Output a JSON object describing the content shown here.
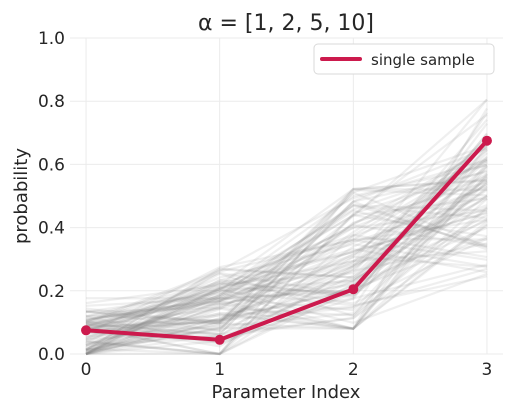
{
  "chart_data": {
    "type": "line",
    "title": "α = [1, 2, 5, 10]",
    "xlabel": "Parameter Index",
    "ylabel": "probability",
    "x": [
      0,
      1,
      2,
      3
    ],
    "xticks": [
      "0",
      "1",
      "2",
      "3"
    ],
    "yticks": [
      "0.0",
      "0.2",
      "0.4",
      "0.6",
      "0.8",
      "1.0"
    ],
    "xlim": [
      -0.12,
      3.12
    ],
    "ylim": [
      0,
      1
    ],
    "grid": true,
    "legend": {
      "position": "top-right",
      "entries": [
        "single sample"
      ]
    },
    "series": [
      {
        "name": "single sample",
        "values": [
          0.075,
          0.045,
          0.205,
          0.675
        ]
      }
    ],
    "background_samples": {
      "count": 100,
      "value_ranges": [
        [
          0.0,
          0.22
        ],
        [
          0.0,
          0.31
        ],
        [
          0.08,
          0.64
        ],
        [
          0.24,
          0.84
        ]
      ],
      "color": "#808080"
    },
    "colors": {
      "highlight": "#cc1a4d",
      "samples": "#808080",
      "grid": "#ebebeb",
      "text": "#262626"
    }
  }
}
